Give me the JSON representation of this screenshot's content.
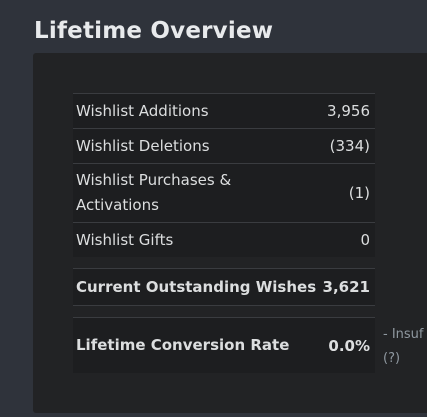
{
  "header": {
    "title": "Lifetime Overview"
  },
  "stats": {
    "wishlist_additions": {
      "label": "Wishlist Additions",
      "value": "3,956"
    },
    "wishlist_deletions": {
      "label": "Wishlist Deletions",
      "value": "(334)"
    },
    "wishlist_purchases": {
      "label_line1": "Wishlist Purchases &",
      "label_line2": "Activations",
      "value": "(1)"
    },
    "wishlist_gifts": {
      "label": "Wishlist Gifts",
      "value": "0"
    },
    "current_outstanding": {
      "label": "Current Outstanding Wishes",
      "value": "3,621"
    },
    "conversion_rate": {
      "label": "Lifetime Conversion Rate",
      "value": "0.0%",
      "note": "- Insuf",
      "help": "(?)"
    }
  }
}
